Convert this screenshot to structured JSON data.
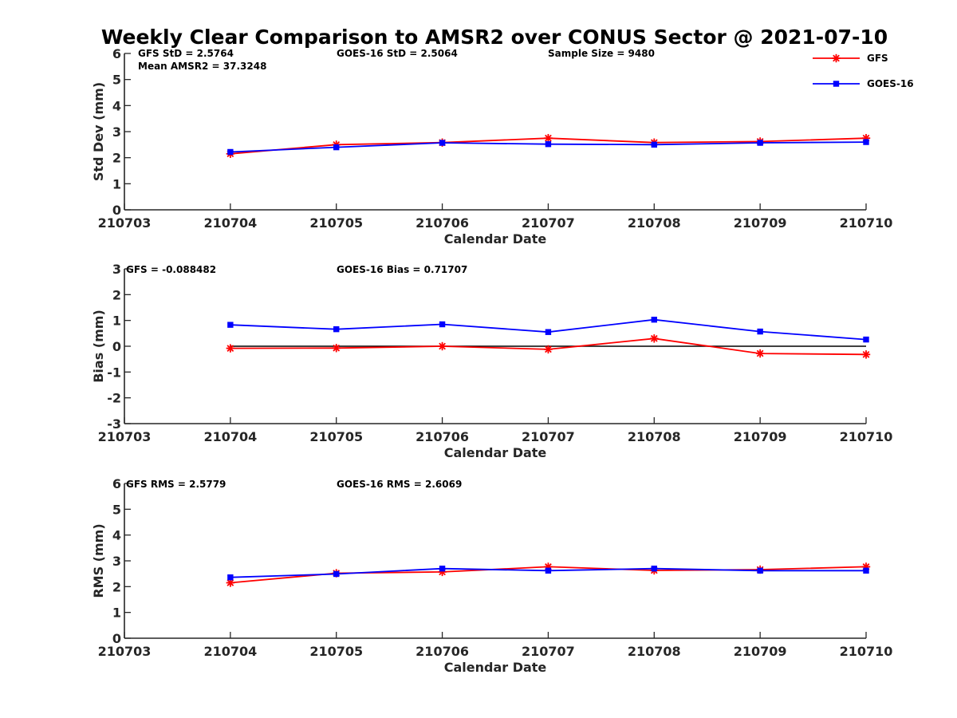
{
  "chart_data": {
    "title": "Weekly Clear Comparison to AMSR2 over CONUS Sector @ 2021-07-10",
    "type": "line",
    "legend": {
      "placement": "top-right",
      "entries": [
        {
          "name": "GFS",
          "color": "#ff0000",
          "marker": "asterisk"
        },
        {
          "name": "GOES-16",
          "color": "#0000ff",
          "marker": "square"
        }
      ]
    },
    "panels": [
      {
        "ylabel": "Std Dev (mm)",
        "xlabel": "Calendar Date",
        "ylim": [
          0,
          6
        ],
        "yticks": [
          0,
          1,
          2,
          3,
          4,
          5,
          6
        ],
        "xticks": [
          "210703",
          "210704",
          "210705",
          "210706",
          "210707",
          "210708",
          "210709",
          "210710"
        ],
        "stats": [
          "GFS StD = 2.5764",
          "GOES-16 StD = 2.5064",
          "Sample Size = 9480",
          "Mean AMSR2 = 37.3248"
        ],
        "series": [
          {
            "name": "GFS",
            "color": "#ff0000",
            "marker": "asterisk",
            "values": [
              2.15,
              2.5,
              2.58,
              2.75,
              2.58,
              2.62,
              2.75
            ]
          },
          {
            "name": "GOES-16",
            "color": "#0000ff",
            "marker": "square",
            "values": [
              2.22,
              2.4,
              2.57,
              2.52,
              2.5,
              2.57,
              2.6
            ]
          }
        ],
        "x_indices": [
          1,
          2,
          3,
          4,
          5,
          6,
          7
        ]
      },
      {
        "ylabel": "Bias (mm)",
        "xlabel": "Calendar Date",
        "ylim": [
          -3,
          3
        ],
        "yticks": [
          -3,
          -2,
          -1,
          0,
          1,
          2,
          3
        ],
        "xticks": [
          "210703",
          "210704",
          "210705",
          "210706",
          "210707",
          "210708",
          "210709",
          "210710"
        ],
        "stats": [
          "GFS = -0.088482",
          "GOES-16 Bias  = 0.71707"
        ],
        "zero_line": true,
        "series": [
          {
            "name": "GFS",
            "color": "#ff0000",
            "marker": "asterisk",
            "values": [
              -0.08,
              -0.07,
              0.0,
              -0.12,
              0.3,
              -0.28,
              -0.32
            ]
          },
          {
            "name": "GOES-16",
            "color": "#0000ff",
            "marker": "square",
            "values": [
              0.83,
              0.66,
              0.85,
              0.55,
              1.03,
              0.57,
              0.26
            ]
          }
        ],
        "x_indices": [
          1,
          2,
          3,
          4,
          5,
          6,
          7
        ]
      },
      {
        "ylabel": "RMS (mm)",
        "xlabel": "Calendar Date",
        "ylim": [
          0,
          6
        ],
        "yticks": [
          0,
          1,
          2,
          3,
          4,
          5,
          6
        ],
        "xticks": [
          "210703",
          "210704",
          "210705",
          "210706",
          "210707",
          "210708",
          "210709",
          "210710"
        ],
        "stats": [
          "GFS RMS = 2.5779",
          "GOES-16 RMS = 2.6069"
        ],
        "series": [
          {
            "name": "GFS",
            "color": "#ff0000",
            "marker": "asterisk",
            "values": [
              2.15,
              2.52,
              2.57,
              2.77,
              2.63,
              2.66,
              2.77
            ]
          },
          {
            "name": "GOES-16",
            "color": "#0000ff",
            "marker": "square",
            "values": [
              2.36,
              2.49,
              2.7,
              2.62,
              2.7,
              2.62,
              2.62
            ]
          }
        ],
        "x_indices": [
          1,
          2,
          3,
          4,
          5,
          6,
          7
        ]
      }
    ]
  }
}
